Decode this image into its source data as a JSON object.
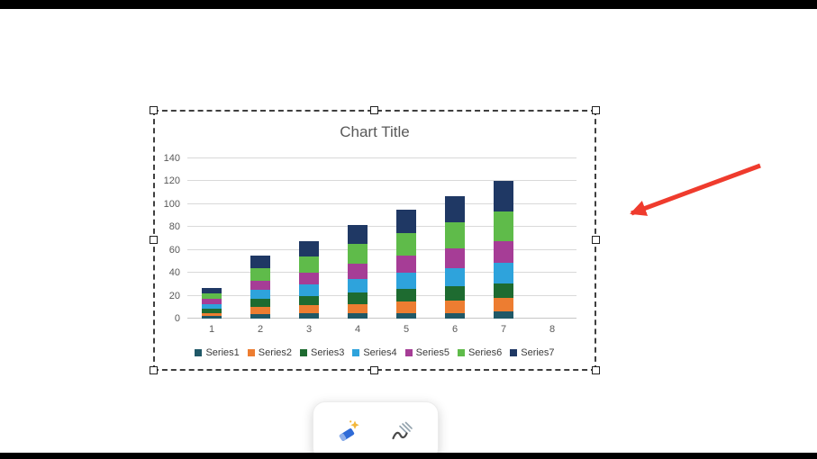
{
  "chart_data": {
    "type": "bar",
    "stacked": true,
    "title": "Chart Title",
    "categories": [
      "1",
      "2",
      "3",
      "4",
      "5",
      "6",
      "7",
      "8"
    ],
    "ylim": [
      0,
      140
    ],
    "ytick_step": 20,
    "grid": true,
    "legend_position": "bottom",
    "series": [
      {
        "name": "Series1",
        "color": "#205867",
        "values": [
          2,
          4,
          5,
          5,
          5,
          5,
          6,
          0
        ]
      },
      {
        "name": "Series2",
        "color": "#ED7D31",
        "values": [
          3,
          6,
          7,
          8,
          10,
          11,
          12,
          0
        ]
      },
      {
        "name": "Series3",
        "color": "#1E6B30",
        "values": [
          4,
          7,
          8,
          10,
          11,
          12,
          13,
          0
        ]
      },
      {
        "name": "Series4",
        "color": "#2EA3DC",
        "values": [
          4,
          8,
          10,
          12,
          14,
          16,
          18,
          0
        ]
      },
      {
        "name": "Series5",
        "color": "#A63D96",
        "values": [
          4,
          8,
          10,
          13,
          15,
          17,
          19,
          0
        ]
      },
      {
        "name": "Series6",
        "color": "#5FBB4A",
        "values": [
          5,
          11,
          14,
          17,
          20,
          23,
          26,
          0
        ]
      },
      {
        "name": "Series7",
        "color": "#1F3864",
        "values": [
          5,
          11,
          14,
          17,
          20,
          23,
          26,
          0
        ]
      }
    ]
  },
  "selection": {
    "handles": [
      "top-left",
      "top-center",
      "top-right",
      "middle-left",
      "middle-right",
      "bottom-left",
      "bottom-center",
      "bottom-right"
    ]
  },
  "annotation_arrow": {
    "color": "#EF3B2D"
  },
  "toolbar": {
    "buttons": [
      {
        "icon": "ink-eraser-icon"
      },
      {
        "icon": "ink-scribble-icon"
      }
    ]
  }
}
